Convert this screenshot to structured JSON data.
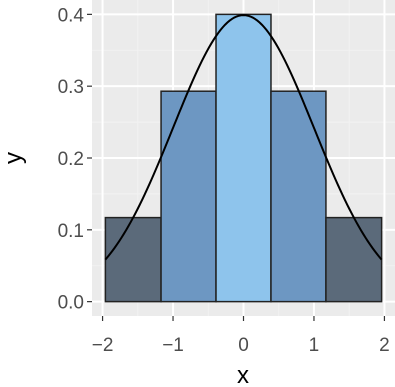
{
  "chart_data": {
    "type": "bar",
    "title": "",
    "xlabel": "x",
    "ylabel": "y",
    "xlim": [
      -2.15,
      2.15
    ],
    "ylim": [
      -0.02,
      0.42
    ],
    "x_ticks": [
      -2,
      -1,
      0,
      1,
      2
    ],
    "x_tick_labels": [
      "−2",
      "−1",
      "0",
      "1",
      "2"
    ],
    "y_ticks": [
      0.0,
      0.1,
      0.2,
      0.3,
      0.4
    ],
    "y_tick_labels": [
      "0.0",
      "0.1",
      "0.2",
      "0.3",
      "0.4"
    ],
    "grid": true,
    "legend": "none",
    "bars": [
      {
        "x_start": -1.96,
        "x_end": -1.17,
        "value": 0.117,
        "fill": "#5b6a7a"
      },
      {
        "x_start": -1.17,
        "x_end": -0.39,
        "value": 0.293,
        "fill": "#6d97c2"
      },
      {
        "x_start": -0.39,
        "x_end": 0.39,
        "value": 0.4,
        "fill": "#8ec4ec"
      },
      {
        "x_start": 0.39,
        "x_end": 1.17,
        "value": 0.293,
        "fill": "#6d97c2"
      },
      {
        "x_start": 1.17,
        "x_end": 1.96,
        "value": 0.117,
        "fill": "#5b6a7a"
      }
    ],
    "curve": {
      "type": "normal-density",
      "mean": 0,
      "sd": 1,
      "x_range": [
        -1.96,
        1.96
      ],
      "color": "#000000"
    },
    "colors": {
      "panel": "#ebebeb",
      "grid_major": "#ffffff",
      "grid_minor": "#f2f2f2",
      "bar_outline": "#222222"
    }
  }
}
